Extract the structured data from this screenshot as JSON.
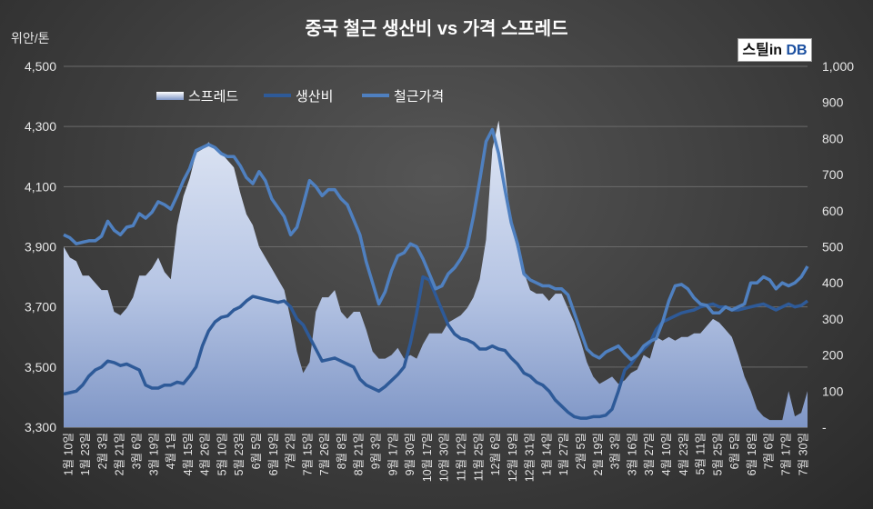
{
  "chart_data": {
    "type": "line",
    "title": "중국 철근 생산비 vs 가격 스프레드",
    "ylabel": "위안/톤",
    "ylim": [
      3300,
      4500
    ],
    "yticks": [
      "3,300",
      "3,500",
      "3,700",
      "3,900",
      "4,100",
      "4,300",
      "4,500"
    ],
    "y2lim": [
      0,
      1000
    ],
    "y2ticks": [
      "-",
      "100",
      "200",
      "300",
      "400",
      "500",
      "600",
      "700",
      "800",
      "900",
      "1,000"
    ],
    "legend": [
      "스프레드",
      "생산비",
      "철근가격"
    ],
    "legend_position": "top-left",
    "colors": {
      "spread_top": "#d9e2f3",
      "spread_bottom": "#8aa0cc",
      "production_cost": "#2e5a98",
      "rebar_price": "#4f80c0"
    },
    "x_labels": [
      "1월 10일",
      "1월 23일",
      "2월 3일",
      "2월 21일",
      "3월 6일",
      "3월 19일",
      "4월 1일",
      "4월 15일",
      "4월 26일",
      "5월 10일",
      "5월 23일",
      "6월 5일",
      "6월 19일",
      "7월 2일",
      "7월 15일",
      "7월 26일",
      "8월 8일",
      "8월 21일",
      "9월 3일",
      "9월 17일",
      "9월 30일",
      "10월 17일",
      "10월 30일",
      "11월 12일",
      "11월 25일",
      "12월 6일",
      "12월 19일",
      "12월 31일",
      "1월 14일",
      "1월 27일",
      "2월 5일",
      "2월 19일",
      "3월 3일",
      "3월 16일",
      "3월 27일",
      "4월 10일",
      "4월 23일",
      "5월 11일",
      "5월 25일",
      "6월 5일",
      "6월 18일",
      "7월 6일",
      "7월 17일",
      "7월 30일"
    ],
    "series": [
      {
        "name": "철근가격",
        "axis": "left",
        "values": [
          3940,
          3930,
          3910,
          3915,
          3920,
          3920,
          3935,
          3985,
          3955,
          3940,
          3965,
          3970,
          4010,
          3995,
          4015,
          4050,
          4040,
          4025,
          4070,
          4120,
          4160,
          4220,
          4230,
          4240,
          4230,
          4210,
          4200,
          4200,
          4170,
          4130,
          4110,
          4150,
          4120,
          4060,
          4030,
          4000,
          3940,
          3965,
          4040,
          4120,
          4100,
          4070,
          4090,
          4090,
          4060,
          4040,
          3990,
          3940,
          3850,
          3780,
          3710,
          3750,
          3820,
          3870,
          3880,
          3910,
          3900,
          3860,
          3810,
          3760,
          3770,
          3810,
          3830,
          3860,
          3900,
          4000,
          4120,
          4250,
          4290,
          4210,
          4090,
          3980,
          3910,
          3810,
          3790,
          3780,
          3770,
          3770,
          3760,
          3760,
          3740,
          3680,
          3620,
          3560,
          3540,
          3530,
          3550,
          3560,
          3570,
          3545,
          3525,
          3540,
          3570,
          3585,
          3595,
          3650,
          3720,
          3770,
          3775,
          3760,
          3730,
          3710,
          3705,
          3680,
          3680,
          3700,
          3690,
          3700,
          3710,
          3780,
          3780,
          3800,
          3790,
          3760,
          3780,
          3770,
          3780,
          3800,
          3835
        ]
      },
      {
        "name": "생산비",
        "axis": "left",
        "values": [
          3410,
          3415,
          3420,
          3440,
          3470,
          3490,
          3500,
          3520,
          3515,
          3505,
          3510,
          3500,
          3490,
          3440,
          3430,
          3430,
          3440,
          3440,
          3450,
          3445,
          3470,
          3500,
          3570,
          3620,
          3650,
          3665,
          3670,
          3690,
          3700,
          3720,
          3735,
          3730,
          3725,
          3720,
          3715,
          3720,
          3700,
          3660,
          3640,
          3600,
          3560,
          3520,
          3525,
          3530,
          3520,
          3510,
          3500,
          3460,
          3440,
          3430,
          3420,
          3435,
          3455,
          3475,
          3500,
          3580,
          3680,
          3800,
          3790,
          3740,
          3690,
          3640,
          3610,
          3595,
          3590,
          3580,
          3560,
          3560,
          3570,
          3560,
          3555,
          3530,
          3510,
          3480,
          3470,
          3450,
          3440,
          3420,
          3390,
          3370,
          3350,
          3335,
          3330,
          3330,
          3335,
          3335,
          3340,
          3360,
          3420,
          3490,
          3510,
          3540,
          3560,
          3580,
          3625,
          3650,
          3660,
          3670,
          3680,
          3685,
          3690,
          3700,
          3705,
          3710,
          3700,
          3700,
          3690,
          3690,
          3695,
          3700,
          3705,
          3710,
          3700,
          3690,
          3700,
          3710,
          3700,
          3705,
          3720
        ]
      },
      {
        "name": "스프레드",
        "axis": "right",
        "values": [
          500,
          470,
          460,
          420,
          420,
          400,
          380,
          380,
          320,
          310,
          330,
          360,
          420,
          420,
          440,
          470,
          430,
          410,
          560,
          640,
          690,
          760,
          770,
          790,
          770,
          760,
          740,
          720,
          650,
          590,
          560,
          500,
          470,
          440,
          410,
          380,
          300,
          210,
          150,
          180,
          320,
          360,
          360,
          380,
          320,
          300,
          320,
          320,
          270,
          210,
          190,
          190,
          200,
          220,
          190,
          200,
          190,
          230,
          260,
          260,
          260,
          290,
          300,
          310,
          330,
          360,
          410,
          520,
          770,
          850,
          710,
          560,
          490,
          430,
          380,
          370,
          370,
          350,
          370,
          370,
          330,
          290,
          240,
          180,
          140,
          120,
          130,
          140,
          120,
          130,
          150,
          160,
          200,
          190,
          250,
          240,
          250,
          240,
          250,
          250,
          260,
          260,
          280,
          300,
          290,
          270,
          250,
          200,
          140,
          100,
          50,
          30,
          20,
          20,
          20,
          100,
          30,
          40,
          100
        ]
      }
    ]
  }
}
